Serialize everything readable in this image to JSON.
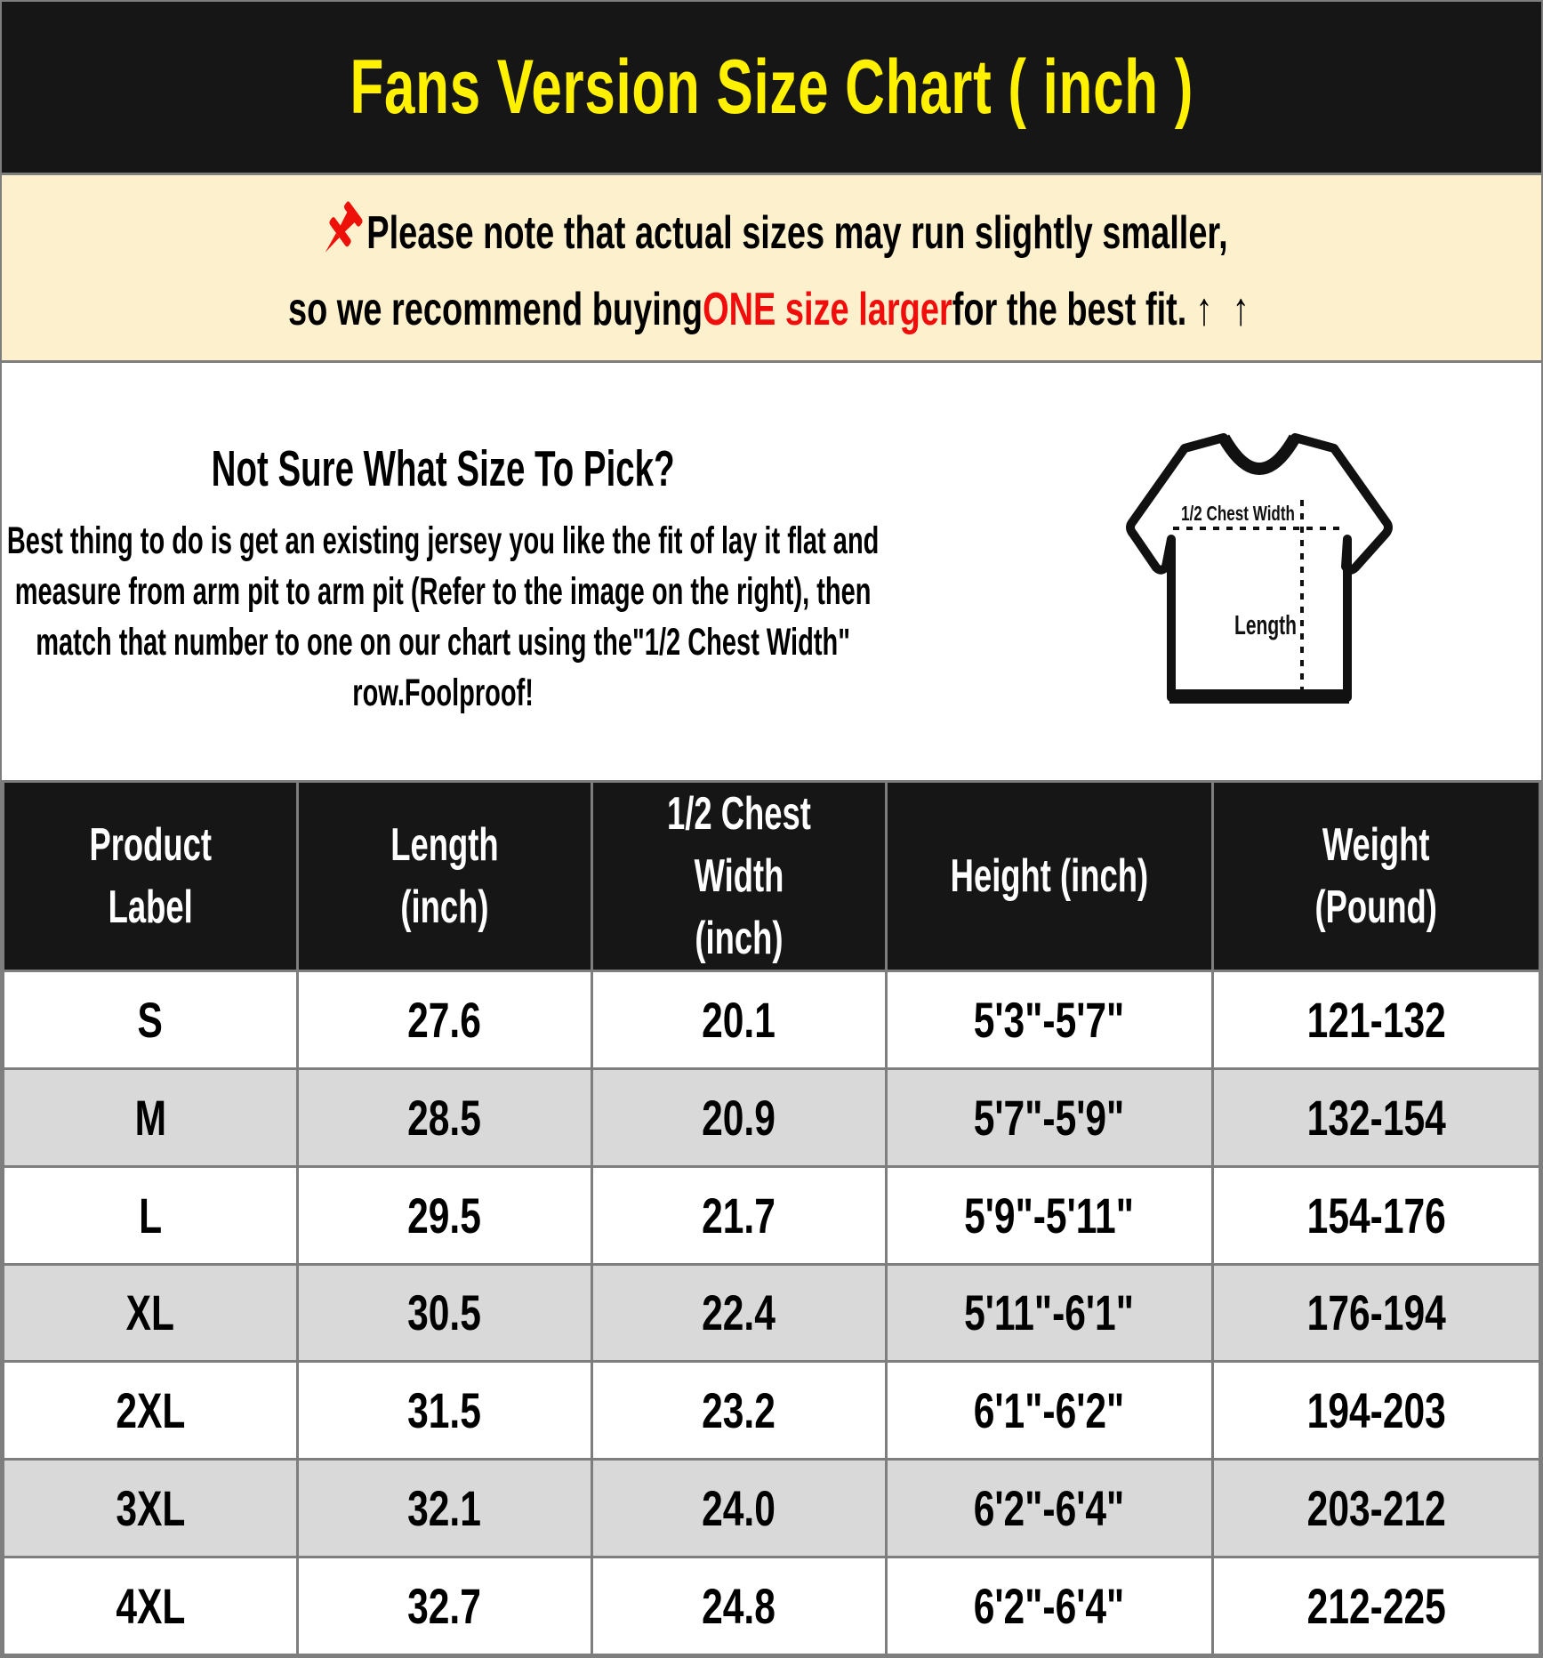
{
  "title": "Fans Version Size Chart ( inch )",
  "note": {
    "pin_icon": "pushpin-icon",
    "line1": "Please note that actual sizes may run slightly smaller,",
    "line2_prefix": "so we recommend buying ",
    "line2_highlight": "ONE size larger",
    "line2_suffix": " for the best fit.",
    "arrows": "↑ ↑"
  },
  "guide": {
    "heading": "Not Sure What Size To Pick?",
    "body": "Best thing to do is get an existing jersey you like the fit of lay it flat and measure from arm pit to arm pit (Refer to the image on the right), then match that number to one on our chart using the\"1/2 Chest Width\" row.Foolproof!"
  },
  "shirt_diagram": {
    "chest_label": "1/2 Chest Width",
    "length_label": "Length"
  },
  "table": {
    "headers": [
      "Product\nLabel",
      "Length (inch)",
      "1/2 Chest Width\n(inch)",
      "Height (inch)",
      "Weight\n(Pound)"
    ],
    "rows": [
      [
        "S",
        "27.6",
        "20.1",
        "5'3\"-5'7\"",
        "121-132"
      ],
      [
        "M",
        "28.5",
        "20.9",
        "5'7\"-5'9\"",
        "132-154"
      ],
      [
        "L",
        "29.5",
        "21.7",
        "5'9\"-5'11\"",
        "154-176"
      ],
      [
        "XL",
        "30.5",
        "22.4",
        "5'11\"-6'1\"",
        "176-194"
      ],
      [
        "2XL",
        "31.5",
        "23.2",
        "6'1\"-6'2\"",
        "194-203"
      ],
      [
        "3XL",
        "32.1",
        "24.0",
        "6'2\"-6'4\"",
        "203-212"
      ],
      [
        "4XL",
        "32.7",
        "24.8",
        "6'2\"-6'4\"",
        "212-225"
      ]
    ]
  },
  "colors": {
    "title_yellow": "#fff100",
    "highlight_red": "#f20d0d",
    "note_bg": "#fdf0cd",
    "table_header_bg": "#161616",
    "row_alt_gray": "#d9d9d9",
    "divider_gray": "#7e7e7e"
  }
}
